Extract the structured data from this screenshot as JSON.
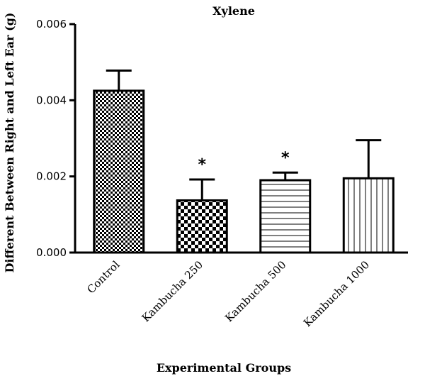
{
  "chart_data": {
    "type": "bar",
    "title": "Xylene",
    "xlabel": "Experimental Groups",
    "ylabel": "Different Between Right and Left Ear (g)",
    "categories": [
      "Control",
      "Kambucha 250",
      "Kambucha 500",
      "Kambucha 1000"
    ],
    "values": [
      0.00425,
      0.00137,
      0.0019,
      0.00195
    ],
    "error_upper": [
      0.00478,
      0.00192,
      0.0021,
      0.00295
    ],
    "significance": [
      "",
      "*",
      "*",
      ""
    ],
    "patterns": [
      "checker-fine",
      "checker-coarse",
      "horizontal-lines",
      "vertical-lines"
    ],
    "ylim": [
      0,
      0.006
    ],
    "yticks": [
      0,
      0.002,
      0.004,
      0.006
    ],
    "ytick_labels": [
      "0.000",
      "0.002",
      "0.004",
      "0.006"
    ],
    "grid": false,
    "colors": {
      "bar_fill": "#ffffff",
      "bar_stroke": "#000000",
      "pattern": "#000000"
    }
  }
}
